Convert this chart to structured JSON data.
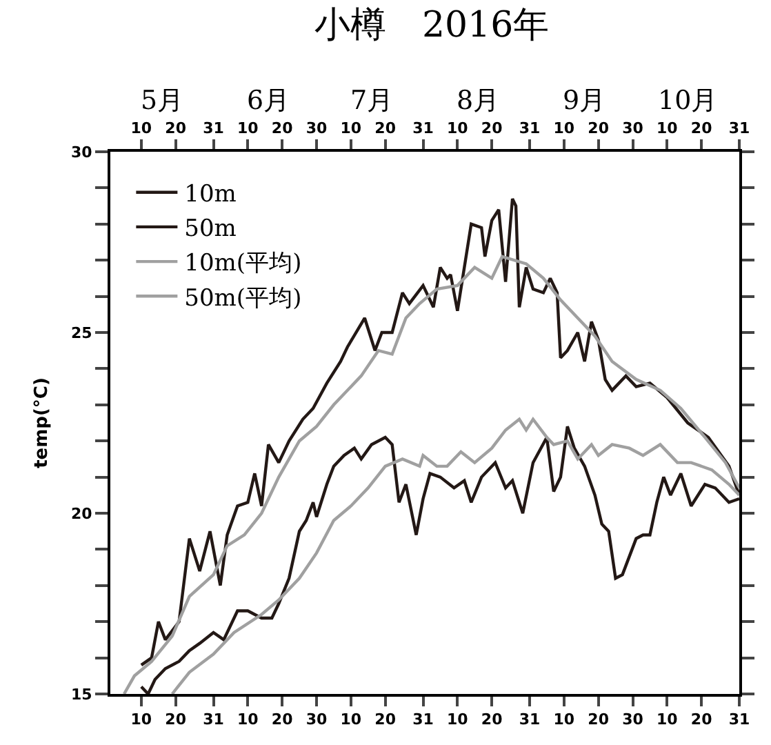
{
  "chart_data": {
    "type": "line",
    "title": "小樽　2016年",
    "ylabel": "temp(°C)",
    "xlim": [
      "2016-05-01",
      "2016-10-31"
    ],
    "xticks": [
      {
        "value": "2016-05-10",
        "label": "10"
      },
      {
        "value": "2016-05-20",
        "label": "20"
      },
      {
        "value": "2016-05-31",
        "label": "31"
      },
      {
        "value": "2016-06-10",
        "label": "10"
      },
      {
        "value": "2016-06-20",
        "label": "20"
      },
      {
        "value": "2016-06-30",
        "label": "30"
      },
      {
        "value": "2016-07-10",
        "label": "10"
      },
      {
        "value": "2016-07-20",
        "label": "20"
      },
      {
        "value": "2016-07-31",
        "label": "31"
      },
      {
        "value": "2016-08-10",
        "label": "10"
      },
      {
        "value": "2016-08-20",
        "label": "20"
      },
      {
        "value": "2016-08-31",
        "label": "31"
      },
      {
        "value": "2016-09-10",
        "label": "10"
      },
      {
        "value": "2016-09-20",
        "label": "20"
      },
      {
        "value": "2016-09-30",
        "label": "30"
      },
      {
        "value": "2016-10-10",
        "label": "10"
      },
      {
        "value": "2016-10-20",
        "label": "20"
      },
      {
        "value": "2016-10-31",
        "label": "31"
      }
    ],
    "x2lim": [
      "2016-05-01",
      "2016-10-31"
    ],
    "x2ticks": [
      {
        "value": "2016-05-10",
        "label": "10"
      },
      {
        "value": "2016-05-20",
        "label": "20"
      },
      {
        "value": "2016-05-31",
        "label": "31"
      },
      {
        "value": "2016-06-10",
        "label": "10"
      },
      {
        "value": "2016-06-20",
        "label": "20"
      },
      {
        "value": "2016-06-30",
        "label": "30"
      },
      {
        "value": "2016-07-10",
        "label": "10"
      },
      {
        "value": "2016-07-20",
        "label": "20"
      },
      {
        "value": "2016-07-31",
        "label": "31"
      },
      {
        "value": "2016-08-10",
        "label": "10"
      },
      {
        "value": "2016-08-20",
        "label": "20"
      },
      {
        "value": "2016-08-31",
        "label": "31"
      },
      {
        "value": "2016-09-10",
        "label": "10"
      },
      {
        "value": "2016-09-20",
        "label": "20"
      },
      {
        "value": "2016-09-30",
        "label": "30"
      },
      {
        "value": "2016-10-10",
        "label": "10"
      },
      {
        "value": "2016-10-20",
        "label": "20"
      },
      {
        "value": "2016-10-31",
        "label": "31"
      }
    ],
    "annotations": [
      "5月",
      "6月",
      "7月",
      "8月",
      "9月",
      "10月"
    ],
    "ylim": [
      15,
      30
    ],
    "yticks": [
      15,
      {
        "value": 16,
        "label": null
      },
      {
        "value": 17,
        "label": null
      },
      {
        "value": 18,
        "label": null
      },
      {
        "value": 19,
        "label": null
      },
      20,
      {
        "value": 21,
        "label": null
      },
      {
        "value": 22,
        "label": null
      },
      {
        "value": 23,
        "label": null
      },
      {
        "value": 24,
        "label": null
      },
      25,
      {
        "value": 26,
        "label": null
      },
      {
        "value": 27,
        "label": null
      },
      {
        "value": 28,
        "label": null
      },
      {
        "value": 29,
        "label": null
      },
      30
    ],
    "grid": false,
    "legend": "top left",
    "marker": "none",
    "line_style": "solid",
    "series": [
      {
        "name": "10m",
        "color": "#231815",
        "x": [
          "2016-05-10",
          "2016-05-13",
          "2016-05-15",
          "2016-05-17",
          "2016-05-21",
          "2016-05-24",
          "2016-05-27",
          "2016-05-30",
          "2016-06-02",
          "2016-06-04",
          "2016-06-07",
          "2016-06-10",
          "2016-06-12",
          "2016-06-14",
          "2016-06-16",
          "2016-06-19",
          "2016-06-22",
          "2016-06-26",
          "2016-06-29",
          "2016-07-03",
          "2016-07-07",
          "2016-07-09",
          "2016-07-14",
          "2016-07-17",
          "2016-07-19",
          "2016-07-22",
          "2016-07-25",
          "2016-07-27",
          "2016-07-31",
          "2016-08-03",
          "2016-08-05",
          "2016-08-07",
          "2016-08-08",
          "2016-08-10",
          "2016-08-14",
          "2016-08-17",
          "2016-08-18",
          "2016-08-20",
          "2016-08-22",
          "2016-08-24",
          "2016-08-26",
          "2016-08-27",
          "2016-08-28",
          "2016-08-30",
          "2016-09-01",
          "2016-09-04",
          "2016-09-06",
          "2016-09-08",
          "2016-09-09",
          "2016-09-11",
          "2016-09-14",
          "2016-09-16",
          "2016-09-18",
          "2016-09-20",
          "2016-09-22",
          "2016-09-24",
          "2016-09-28",
          "2016-10-01",
          "2016-10-05",
          "2016-10-10",
          "2016-10-16",
          "2016-10-22",
          "2016-10-28",
          "2016-10-31"
        ],
        "values": [
          15.8,
          16.0,
          17.0,
          16.5,
          17.0,
          19.3,
          18.4,
          19.5,
          18.0,
          19.4,
          20.2,
          20.3,
          21.1,
          20.2,
          21.9,
          21.4,
          22.0,
          22.6,
          22.9,
          23.6,
          24.2,
          24.6,
          25.4,
          24.5,
          25.0,
          25.0,
          26.1,
          25.8,
          26.3,
          25.7,
          26.8,
          26.5,
          26.6,
          25.6,
          28.0,
          27.9,
          27.1,
          28.1,
          28.4,
          26.4,
          28.7,
          28.5,
          25.7,
          26.8,
          26.2,
          26.1,
          26.5,
          26.1,
          24.3,
          24.5,
          25.0,
          24.2,
          25.3,
          24.8,
          23.7,
          23.4,
          23.8,
          23.5,
          23.6,
          23.2,
          22.5,
          22.1,
          21.3,
          20.5
        ]
      },
      {
        "name": "50m",
        "color": "#231815",
        "x": [
          "2016-05-10",
          "2016-05-12",
          "2016-05-14",
          "2016-05-17",
          "2016-05-21",
          "2016-05-24",
          "2016-05-27",
          "2016-05-31",
          "2016-06-03",
          "2016-06-07",
          "2016-06-10",
          "2016-06-14",
          "2016-06-17",
          "2016-06-19",
          "2016-06-22",
          "2016-06-25",
          "2016-06-27",
          "2016-06-29",
          "2016-06-30",
          "2016-07-03",
          "2016-07-05",
          "2016-07-08",
          "2016-07-11",
          "2016-07-13",
          "2016-07-16",
          "2016-07-20",
          "2016-07-22",
          "2016-07-24",
          "2016-07-26",
          "2016-07-29",
          "2016-07-31",
          "2016-08-02",
          "2016-08-05",
          "2016-08-09",
          "2016-08-12",
          "2016-08-14",
          "2016-08-17",
          "2016-08-21",
          "2016-08-24",
          "2016-08-26",
          "2016-08-29",
          "2016-09-01",
          "2016-09-05",
          "2016-09-07",
          "2016-09-09",
          "2016-09-11",
          "2016-09-13",
          "2016-09-16",
          "2016-09-19",
          "2016-09-21",
          "2016-09-23",
          "2016-09-25",
          "2016-09-27",
          "2016-10-01",
          "2016-10-03",
          "2016-10-05",
          "2016-10-07",
          "2016-10-09",
          "2016-10-11",
          "2016-10-14",
          "2016-10-17",
          "2016-10-21",
          "2016-10-24",
          "2016-10-28",
          "2016-10-31"
        ],
        "values": [
          15.2,
          15.0,
          15.4,
          15.7,
          15.9,
          16.2,
          16.4,
          16.7,
          16.5,
          17.3,
          17.3,
          17.1,
          17.1,
          17.5,
          18.2,
          19.5,
          19.8,
          20.3,
          19.9,
          20.8,
          21.3,
          21.6,
          21.8,
          21.5,
          21.9,
          22.1,
          21.9,
          20.3,
          20.8,
          19.4,
          20.4,
          21.1,
          21.0,
          20.7,
          20.9,
          20.3,
          21.0,
          21.4,
          20.7,
          20.9,
          20.0,
          21.4,
          22.1,
          20.6,
          21.0,
          22.4,
          21.8,
          21.3,
          20.5,
          19.7,
          19.5,
          18.2,
          18.3,
          19.3,
          19.4,
          19.4,
          20.3,
          21.0,
          20.5,
          21.1,
          20.2,
          20.8,
          20.7,
          20.3,
          20.4
        ]
      },
      {
        "name": "10m(平均)",
        "color": "#a0a0a0",
        "x": [
          "2016-05-05",
          "2016-05-08",
          "2016-05-13",
          "2016-05-19",
          "2016-05-24",
          "2016-05-31",
          "2016-06-04",
          "2016-06-09",
          "2016-06-14",
          "2016-06-19",
          "2016-06-25",
          "2016-06-30",
          "2016-07-05",
          "2016-07-13",
          "2016-07-18",
          "2016-07-22",
          "2016-07-26",
          "2016-07-30",
          "2016-08-04",
          "2016-08-10",
          "2016-08-15",
          "2016-08-20",
          "2016-08-23",
          "2016-08-30",
          "2016-09-04",
          "2016-09-09",
          "2016-09-14",
          "2016-09-19",
          "2016-09-24",
          "2016-10-01",
          "2016-10-08",
          "2016-10-14",
          "2016-10-21",
          "2016-10-27",
          "2016-10-31"
        ],
        "values": [
          15.0,
          15.5,
          15.9,
          16.6,
          17.7,
          18.3,
          19.1,
          19.4,
          20.0,
          21.0,
          22.0,
          22.4,
          23.0,
          23.8,
          24.5,
          24.4,
          25.4,
          25.8,
          26.2,
          26.3,
          26.8,
          26.5,
          27.1,
          26.9,
          26.5,
          25.9,
          25.4,
          24.9,
          24.2,
          23.7,
          23.4,
          22.9,
          22.1,
          21.4,
          20.7
        ]
      },
      {
        "name": "50m(平均)",
        "color": "#a0a0a0",
        "x": [
          "2016-05-19",
          "2016-05-24",
          "2016-05-31",
          "2016-06-06",
          "2016-06-14",
          "2016-06-19",
          "2016-06-25",
          "2016-06-30",
          "2016-07-05",
          "2016-07-10",
          "2016-07-15",
          "2016-07-20",
          "2016-07-25",
          "2016-07-30",
          "2016-07-31",
          "2016-08-04",
          "2016-08-07",
          "2016-08-11",
          "2016-08-15",
          "2016-08-20",
          "2016-08-24",
          "2016-08-28",
          "2016-08-30",
          "2016-09-01",
          "2016-09-05",
          "2016-09-07",
          "2016-09-11",
          "2016-09-14",
          "2016-09-18",
          "2016-09-20",
          "2016-09-24",
          "2016-09-29",
          "2016-10-03",
          "2016-10-08",
          "2016-10-13",
          "2016-10-17",
          "2016-10-23",
          "2016-10-28",
          "2016-10-31"
        ],
        "values": [
          15.0,
          15.6,
          16.1,
          16.7,
          17.2,
          17.6,
          18.2,
          18.9,
          19.8,
          20.2,
          20.7,
          21.3,
          21.5,
          21.3,
          21.6,
          21.3,
          21.3,
          21.7,
          21.4,
          21.8,
          22.3,
          22.6,
          22.3,
          22.6,
          22.1,
          21.9,
          22.0,
          21.5,
          21.9,
          21.6,
          21.9,
          21.8,
          21.6,
          21.9,
          21.4,
          21.4,
          21.2,
          20.8,
          20.5
        ]
      }
    ]
  }
}
